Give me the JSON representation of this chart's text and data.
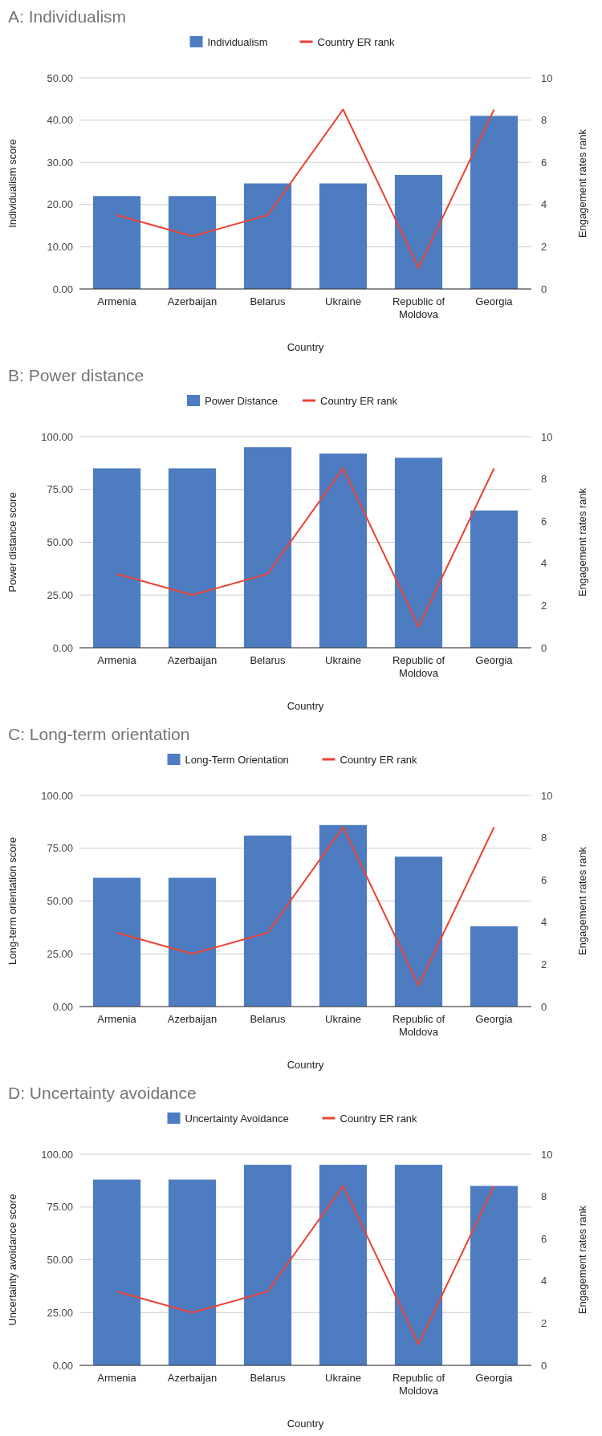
{
  "chart_data": [
    {
      "type": "bar",
      "title": "A: Individualism",
      "xlabel": "Country",
      "ylabel": "Individualism score",
      "y2label": "Engagement rates rank",
      "categories": [
        "Armenia",
        "Azerbaijan",
        "Belarus",
        "Ukraine",
        "Republic of Moldova",
        "Georgia"
      ],
      "series": [
        {
          "name": "Individualism",
          "color": "#4e7cc1",
          "values": [
            22,
            22,
            25,
            25,
            27,
            41
          ]
        },
        {
          "name": "Country ER rank",
          "type": "line",
          "axis": "y2",
          "color": "#ea4335",
          "values": [
            3.5,
            2.5,
            3.5,
            8.5,
            1,
            8.5
          ]
        }
      ],
      "ylim": [
        0,
        50
      ],
      "yticks": [
        {
          "value": 0,
          "label": "0.00"
        },
        {
          "value": 10,
          "label": "10.00"
        },
        {
          "value": 20,
          "label": "20.00"
        },
        {
          "value": 30,
          "label": "30.00"
        },
        {
          "value": 40,
          "label": "40.00"
        },
        {
          "value": 50,
          "label": "50.00"
        }
      ],
      "y2lim": [
        0,
        10
      ],
      "y2ticks": [
        0,
        2,
        4,
        6,
        8,
        10
      ],
      "grid": "y",
      "legend": "top"
    },
    {
      "type": "bar",
      "title": "B: Power distance",
      "xlabel": "Country",
      "ylabel": "Power distance score",
      "y2label": "Engagement rates rank",
      "categories": [
        "Armenia",
        "Azerbaijan",
        "Belarus",
        "Ukraine",
        "Republic of Moldova",
        "Georgia"
      ],
      "series": [
        {
          "name": "Power Distance",
          "color": "#4e7cc1",
          "values": [
            85,
            85,
            95,
            92,
            90,
            65
          ]
        },
        {
          "name": "Country ER rank",
          "type": "line",
          "axis": "y2",
          "color": "#ea4335",
          "values": [
            3.5,
            2.5,
            3.5,
            8.5,
            1,
            8.5
          ]
        }
      ],
      "ylim": [
        0,
        100
      ],
      "yticks": [
        {
          "value": 0,
          "label": "0.00"
        },
        {
          "value": 25,
          "label": "25.00"
        },
        {
          "value": 50,
          "label": "50.00"
        },
        {
          "value": 75,
          "label": "75.00"
        },
        {
          "value": 100,
          "label": "100.00"
        }
      ],
      "y2lim": [
        0,
        10
      ],
      "y2ticks": [
        0,
        2,
        4,
        6,
        8,
        10
      ],
      "grid": "y",
      "legend": "top"
    },
    {
      "type": "bar",
      "title": "C: Long-term orientation",
      "xlabel": "Country",
      "ylabel": "Long-term orientation score",
      "y2label": "Engagement rates rank",
      "categories": [
        "Armenia",
        "Azerbaijan",
        "Belarus",
        "Ukraine",
        "Republic of Moldova",
        "Georgia"
      ],
      "series": [
        {
          "name": "Long-Term Orientation",
          "color": "#4e7cc1",
          "values": [
            61,
            61,
            81,
            86,
            71,
            38
          ]
        },
        {
          "name": "Country ER rank",
          "type": "line",
          "axis": "y2",
          "color": "#ea4335",
          "values": [
            3.5,
            2.5,
            3.5,
            8.5,
            1,
            8.5
          ]
        }
      ],
      "ylim": [
        0,
        100
      ],
      "yticks": [
        {
          "value": 0,
          "label": "0.00"
        },
        {
          "value": 25,
          "label": "25.00"
        },
        {
          "value": 50,
          "label": "50.00"
        },
        {
          "value": 75,
          "label": "75.00"
        },
        {
          "value": 100,
          "label": "100.00"
        }
      ],
      "y2lim": [
        0,
        10
      ],
      "y2ticks": [
        0,
        2,
        4,
        6,
        8,
        10
      ],
      "grid": "y",
      "legend": "top"
    },
    {
      "type": "bar",
      "title": "D: Uncertainty avoidance",
      "xlabel": "Country",
      "ylabel": "Uncertainty avoidance score",
      "y2label": "Engagement rates rank",
      "categories": [
        "Armenia",
        "Azerbaijan",
        "Belarus",
        "Ukraine",
        "Republic of Moldova",
        "Georgia"
      ],
      "series": [
        {
          "name": "Uncertainty Avoidance",
          "color": "#4e7cc1",
          "values": [
            88,
            88,
            95,
            95,
            95,
            85
          ]
        },
        {
          "name": "Country ER rank",
          "type": "line",
          "axis": "y2",
          "color": "#ea4335",
          "values": [
            3.5,
            2.5,
            3.5,
            8.5,
            1,
            8.5
          ]
        }
      ],
      "ylim": [
        0,
        100
      ],
      "yticks": [
        {
          "value": 0,
          "label": "0.00"
        },
        {
          "value": 25,
          "label": "25.00"
        },
        {
          "value": 50,
          "label": "50.00"
        },
        {
          "value": 75,
          "label": "75.00"
        },
        {
          "value": 100,
          "label": "100.00"
        }
      ],
      "y2lim": [
        0,
        10
      ],
      "y2ticks": [
        0,
        2,
        4,
        6,
        8,
        10
      ],
      "grid": "y",
      "legend": "top"
    }
  ]
}
